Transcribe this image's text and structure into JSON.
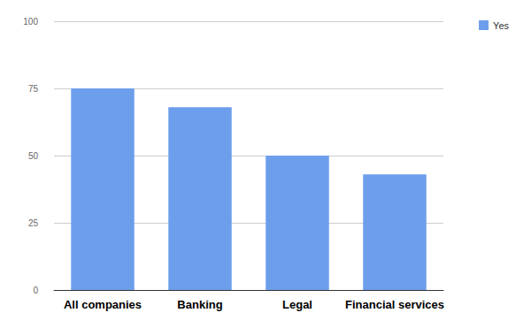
{
  "chart_data": {
    "type": "bar",
    "categories": [
      "All companies",
      "Banking",
      "Legal",
      "Financial services"
    ],
    "series": [
      {
        "name": "Yes",
        "color": "#6d9eeb",
        "values": [
          75,
          68,
          50,
          43
        ]
      }
    ],
    "ylim": [
      0,
      100
    ],
    "yticks": [
      0,
      25,
      50,
      75,
      100
    ],
    "grid": true,
    "legend": "top-right"
  }
}
